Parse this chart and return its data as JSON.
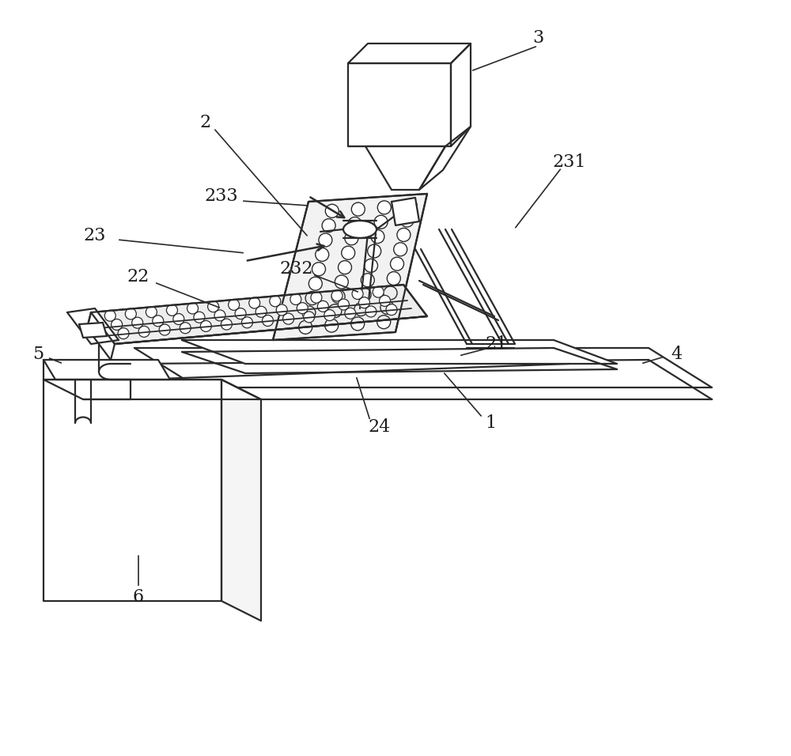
{
  "background_color": "#ffffff",
  "line_color": "#2a2a2a",
  "label_color": "#1a1a1a",
  "label_fontsize": 16,
  "figsize": [
    10.0,
    9.56
  ],
  "dpi": 100
}
